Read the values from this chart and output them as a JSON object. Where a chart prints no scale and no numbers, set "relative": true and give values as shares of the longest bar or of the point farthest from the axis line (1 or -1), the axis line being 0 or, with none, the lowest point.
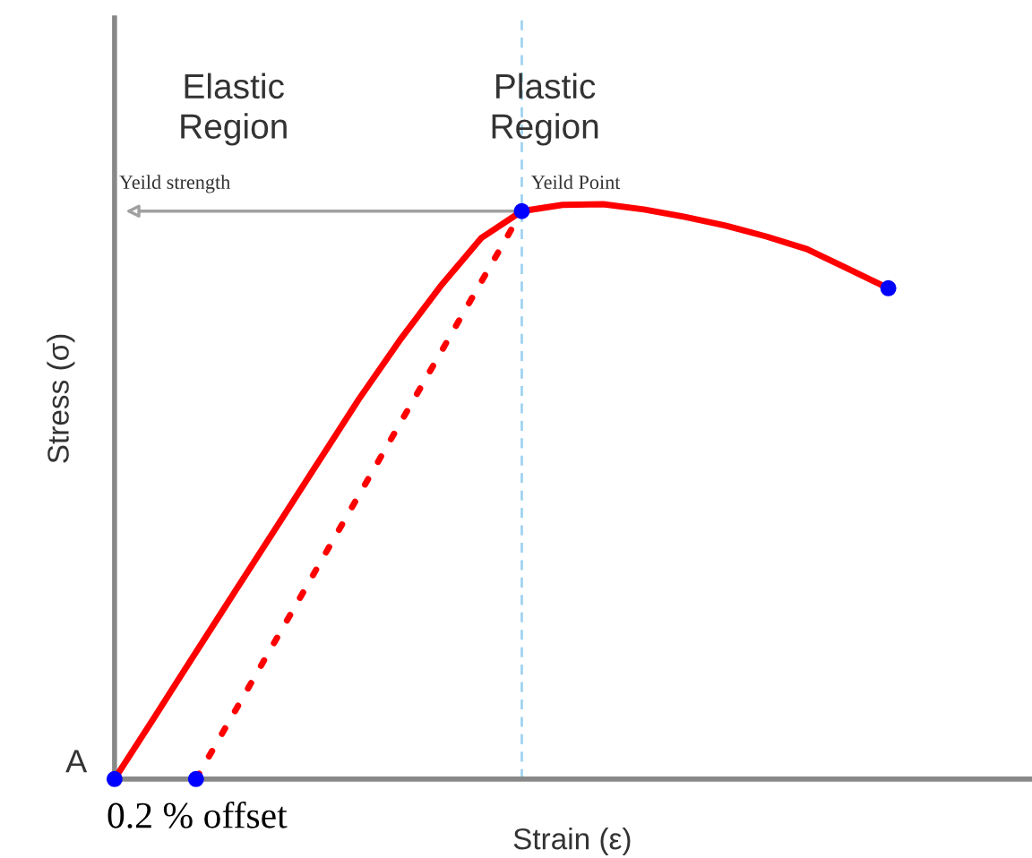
{
  "chart_data": {
    "type": "line",
    "relative": true,
    "xlabel": "Strain (ε)",
    "ylabel": "Stress (σ)",
    "categories": [
      null,
      null,
      null,
      null,
      null,
      null,
      null,
      null,
      null,
      null,
      null,
      null,
      null,
      null,
      null,
      null,
      null,
      null,
      null,
      null
    ],
    "series": [
      {
        "color": "#ff0000",
        "line_style": "solid",
        "values": [
          0,
          0.11,
          0.221,
          0.331,
          0.441,
          0.551,
          0.661,
          0.763,
          0.857,
          0.941,
          0.988,
          0.999,
          1,
          0.991,
          0.978,
          0.963,
          0.944,
          0.922,
          0.888,
          0.854
        ]
      },
      {
        "color": "#ff0000",
        "line_style": "dotted",
        "values": [
          null,
          null,
          0,
          null,
          null,
          null,
          null,
          null,
          null,
          null,
          0.988,
          null,
          null,
          null,
          null,
          null,
          null,
          null,
          null,
          null
        ]
      }
    ],
    "annotations": [
      "Elastic Region",
      "Plastic Region",
      "Yeild strength",
      "Yeild Point",
      "A",
      "0.2 % offset"
    ]
  }
}
